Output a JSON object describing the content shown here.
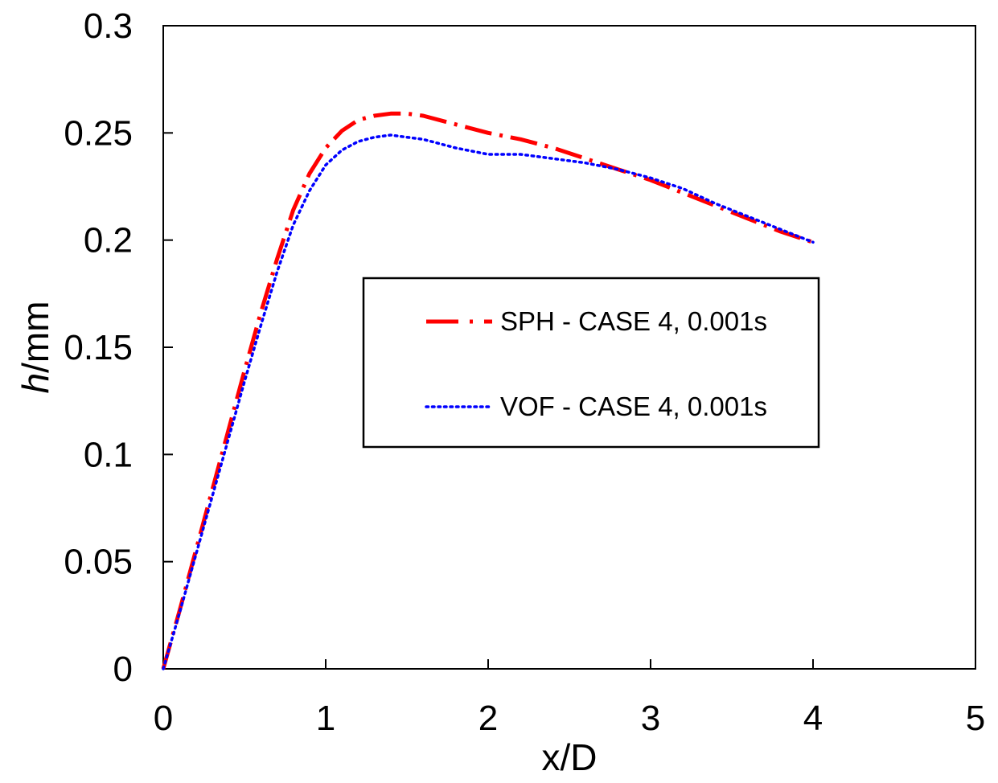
{
  "chart_data": {
    "type": "line",
    "title": "",
    "xlabel": "x/D",
    "ylabel_italic": "h",
    "ylabel_rest": "/mm",
    "xlim": [
      0,
      5
    ],
    "ylim": [
      0,
      0.3
    ],
    "xticks": [
      0,
      1,
      2,
      3,
      4,
      5
    ],
    "xtick_labels": [
      "0",
      "1",
      "2",
      "3",
      "4",
      "5"
    ],
    "yticks": [
      0,
      0.05,
      0.1,
      0.15,
      0.2,
      0.25,
      0.3
    ],
    "ytick_labels": [
      "0",
      "0.05",
      "0.1",
      "0.15",
      "0.2",
      "0.25",
      "0.3"
    ],
    "grid": false,
    "legend_position": "center-right",
    "series": [
      {
        "name": "SPH - CASE 4, 0.001s",
        "color": "#ff0000",
        "style": "dash-dot",
        "x": [
          0,
          0.1,
          0.2,
          0.3,
          0.4,
          0.5,
          0.6,
          0.7,
          0.8,
          0.9,
          1.0,
          1.1,
          1.2,
          1.3,
          1.4,
          1.5,
          1.6,
          1.8,
          2.0,
          2.2,
          2.4,
          2.6,
          2.8,
          3.0,
          3.2,
          3.4,
          3.6,
          3.8,
          4.0
        ],
        "y": [
          0,
          0.027,
          0.055,
          0.083,
          0.111,
          0.139,
          0.166,
          0.191,
          0.214,
          0.231,
          0.243,
          0.251,
          0.256,
          0.258,
          0.259,
          0.259,
          0.258,
          0.254,
          0.25,
          0.247,
          0.243,
          0.238,
          0.233,
          0.228,
          0.222,
          0.216,
          0.21,
          0.204,
          0.199
        ]
      },
      {
        "name": "VOF - CASE 4, 0.001s",
        "color": "#0000ff",
        "style": "dotted",
        "x": [
          0,
          0.1,
          0.2,
          0.3,
          0.4,
          0.5,
          0.6,
          0.7,
          0.8,
          0.9,
          1.0,
          1.1,
          1.2,
          1.3,
          1.4,
          1.5,
          1.6,
          1.8,
          2.0,
          2.2,
          2.4,
          2.6,
          2.8,
          3.0,
          3.2,
          3.4,
          3.6,
          3.8,
          4.0
        ],
        "y": [
          0,
          0.026,
          0.053,
          0.08,
          0.107,
          0.134,
          0.16,
          0.185,
          0.207,
          0.223,
          0.235,
          0.242,
          0.246,
          0.248,
          0.249,
          0.248,
          0.247,
          0.243,
          0.24,
          0.24,
          0.238,
          0.236,
          0.233,
          0.229,
          0.224,
          0.217,
          0.211,
          0.205,
          0.199
        ]
      }
    ]
  }
}
